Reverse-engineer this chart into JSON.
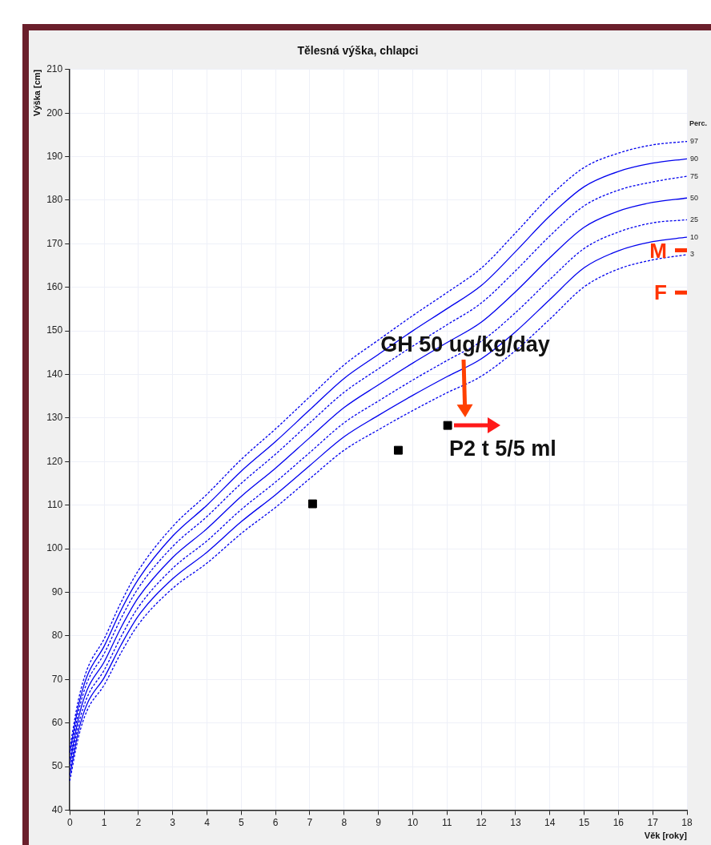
{
  "chart_data": {
    "type": "line",
    "title": "Tělesná výška, chlapci",
    "xlabel": "Věk [roky]",
    "ylabel": "Výška [cm]",
    "legend_title": "Perc.",
    "x": [
      0,
      0.25,
      0.5,
      1,
      1.5,
      2,
      3,
      4,
      5,
      6,
      7,
      8,
      9,
      10,
      11,
      12,
      13,
      14,
      15,
      16,
      17,
      18
    ],
    "xlim": [
      0,
      18
    ],
    "xticks": [
      0,
      1,
      2,
      3,
      4,
      5,
      6,
      7,
      8,
      9,
      10,
      11,
      12,
      13,
      14,
      15,
      16,
      17,
      18
    ],
    "ylim": [
      40,
      210
    ],
    "yticks": [
      40,
      50,
      60,
      70,
      80,
      90,
      100,
      110,
      120,
      130,
      140,
      150,
      160,
      170,
      180,
      190,
      200,
      210
    ],
    "grid": true,
    "legend": false,
    "marker": "none",
    "series": [
      {
        "name": "97",
        "color": "#0000ee",
        "line_style": "dashed",
        "values": [
          54.3,
          65.3,
          72.2,
          79.3,
          87.8,
          95,
          105.1,
          112.5,
          120.5,
          127.5,
          134.9,
          142.2,
          147.9,
          153.5,
          158.8,
          164.4,
          172.5,
          180.9,
          187.5,
          190.8,
          192.7,
          193.5
        ]
      },
      {
        "name": "90",
        "color": "#0000ee",
        "line_style": "solid",
        "values": [
          53.1,
          63.9,
          70.7,
          77.6,
          86,
          93,
          102.9,
          110,
          117.8,
          124.6,
          131.9,
          139.1,
          144.6,
          150,
          155.1,
          160.4,
          168.2,
          176.4,
          183.1,
          186.6,
          188.5,
          189.5
        ]
      },
      {
        "name": "75",
        "color": "#0000ee",
        "line_style": "dashed",
        "values": [
          51.8,
          62.5,
          69.2,
          75.9,
          84.1,
          91,
          100.5,
          107.4,
          115,
          121.7,
          128.9,
          135.9,
          141.3,
          146.5,
          151.4,
          156.4,
          163.8,
          171.8,
          178.7,
          182.3,
          184.2,
          185.5
        ]
      },
      {
        "name": "50",
        "color": "#0000ee",
        "line_style": "solid",
        "values": [
          50.5,
          61,
          67.5,
          74,
          82,
          88.8,
          98,
          104.6,
          112,
          118.5,
          125.5,
          132.4,
          137.6,
          142.6,
          147.3,
          152,
          159,
          166.8,
          173.8,
          177.5,
          179.5,
          180.5
        ]
      },
      {
        "name": "25",
        "color": "#0000ee",
        "line_style": "dashed",
        "values": [
          49.2,
          59.5,
          65.8,
          72.1,
          79.9,
          86.6,
          95.5,
          101.8,
          109,
          115.3,
          122.1,
          128.9,
          133.9,
          138.7,
          143.2,
          147.6,
          154.2,
          161.8,
          168.9,
          172.7,
          174.8,
          175.5
        ]
      },
      {
        "name": "10",
        "color": "#0000ee",
        "line_style": "solid",
        "values": [
          47.9,
          58.1,
          64.3,
          70.4,
          78,
          84.6,
          93.1,
          99.2,
          106.2,
          112.4,
          119.1,
          125.7,
          130.6,
          135.2,
          139.5,
          143.6,
          149.8,
          157.2,
          164.5,
          168.4,
          170.5,
          171.5
        ]
      },
      {
        "name": "3",
        "color": "#0000ee",
        "line_style": "dashed",
        "values": [
          46.7,
          56.7,
          62.8,
          68.7,
          76.2,
          82.6,
          90.9,
          96.7,
          103.5,
          109.5,
          116.1,
          122.6,
          127.3,
          131.7,
          135.8,
          139.6,
          145.5,
          152.7,
          160.1,
          164.2,
          166.3,
          167.5
        ]
      },
      {
        "type": "scatter",
        "marker": "square",
        "color": "#000000",
        "x": [
          7.08,
          9.58,
          11.02
        ],
        "values": [
          110.3,
          122.6,
          128.3
        ]
      },
      {
        "name": "M",
        "type": "line",
        "color": "#ff3300",
        "line_style": "solid",
        "x": [
          17.65,
          18
        ],
        "values": [
          168.5,
          168.5
        ]
      },
      {
        "name": "F",
        "type": "line",
        "color": "#ff3300",
        "line_style": "solid",
        "x": [
          17.65,
          18
        ],
        "values": [
          158.8,
          158.8
        ]
      }
    ],
    "annotations": [
      "GH 50 ug/kg/day",
      "P2 t 5/5 ml"
    ]
  }
}
